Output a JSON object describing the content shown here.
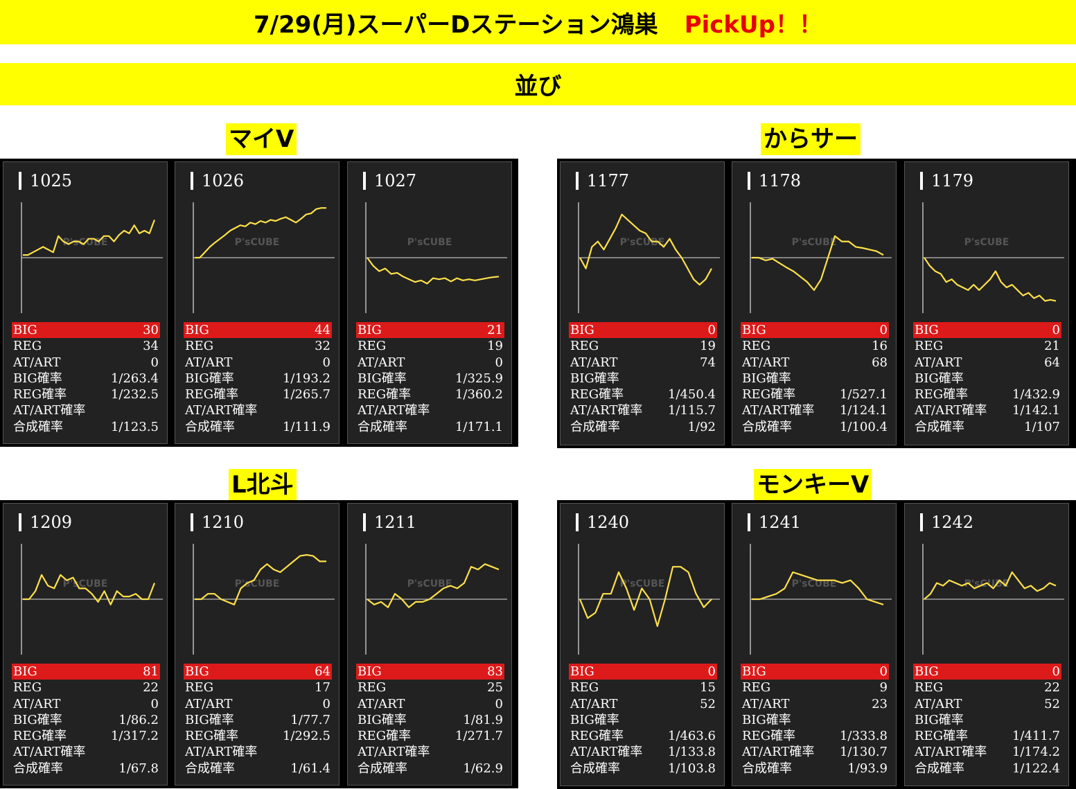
{
  "header": {
    "title": "7/29(月)スーパーDステーション鴻巣",
    "pickup": "PickUp！！"
  },
  "subheader": "並び",
  "labels": {
    "big": "BIG",
    "reg": "REG",
    "at": "AT/ART",
    "big_rate": "BIG確率",
    "reg_rate": "REG確率",
    "at_rate": "AT/ART確率",
    "total_rate": "合成確率"
  },
  "colors": {
    "banner": "#ffff00",
    "pickup": "#e60000",
    "big_row": "#dd1a1a",
    "line": "#ffe14a",
    "card_bg": "#222222"
  },
  "watermark": "P'sCUBE",
  "groups": [
    {
      "name": "マイV",
      "machines": [
        {
          "num": "1025",
          "big": "30",
          "reg": "34",
          "at": "0",
          "big_rate": "1/263.4",
          "reg_rate": "1/232.5",
          "at_rate": "",
          "total_rate": "1/123.5",
          "trend": [
            0.05,
            0.05,
            0.1,
            0.15,
            0.2,
            0.15,
            0.1,
            0.4,
            0.3,
            0.25,
            0.3,
            0.3,
            0.25,
            0.35,
            0.35,
            0.3,
            0.4,
            0.4,
            0.3,
            0.42,
            0.5,
            0.45,
            0.6,
            0.45,
            0.5,
            0.45,
            0.7
          ]
        },
        {
          "num": "1026",
          "big": "44",
          "reg": "32",
          "at": "0",
          "big_rate": "1/193.2",
          "reg_rate": "1/265.7",
          "at_rate": "",
          "total_rate": "1/111.9",
          "trend": [
            0.0,
            0.0,
            0.1,
            0.2,
            0.28,
            0.35,
            0.42,
            0.5,
            0.55,
            0.6,
            0.58,
            0.65,
            0.62,
            0.68,
            0.65,
            0.7,
            0.68,
            0.72,
            0.75,
            0.7,
            0.65,
            0.72,
            0.8,
            0.82,
            0.9,
            0.92,
            0.92
          ]
        },
        {
          "num": "1027",
          "big": "21",
          "reg": "19",
          "at": "0",
          "big_rate": "1/325.9",
          "reg_rate": "1/360.2",
          "at_rate": "",
          "total_rate": "1/171.1",
          "trend": [
            0.0,
            -0.15,
            -0.25,
            -0.2,
            -0.3,
            -0.28,
            -0.35,
            -0.4,
            -0.45,
            -0.42,
            -0.48,
            -0.38,
            -0.4,
            -0.38,
            -0.44,
            -0.38,
            -0.42,
            -0.4,
            -0.42,
            -0.4,
            -0.38,
            -0.36,
            -0.35
          ]
        }
      ]
    },
    {
      "name": "からサー",
      "machines": [
        {
          "num": "1177",
          "big": "0",
          "reg": "19",
          "at": "74",
          "big_rate": "",
          "reg_rate": "1/450.4",
          "at_rate": "1/115.7",
          "total_rate": "1/92",
          "trend": [
            0.0,
            -0.2,
            0.2,
            0.3,
            0.15,
            0.35,
            0.55,
            0.8,
            0.7,
            0.6,
            0.5,
            0.45,
            0.3,
            0.3,
            0.2,
            0.35,
            0.15,
            0.0,
            -0.2,
            -0.4,
            -0.5,
            -0.4,
            -0.2
          ]
        },
        {
          "num": "1178",
          "big": "0",
          "reg": "16",
          "at": "68",
          "big_rate": "",
          "reg_rate": "1/527.1",
          "at_rate": "1/124.1",
          "total_rate": "1/100.4",
          "trend": [
            0.0,
            0.0,
            -0.05,
            -0.02,
            -0.1,
            -0.18,
            -0.25,
            -0.35,
            -0.45,
            -0.6,
            -0.4,
            0.0,
            0.4,
            0.3,
            0.3,
            0.2,
            0.18,
            0.15,
            0.12,
            0.05
          ]
        },
        {
          "num": "1179",
          "big": "0",
          "reg": "21",
          "at": "64",
          "big_rate": "",
          "reg_rate": "1/432.9",
          "at_rate": "1/142.1",
          "total_rate": "1/107",
          "trend": [
            0.0,
            -0.15,
            -0.25,
            -0.3,
            -0.45,
            -0.4,
            -0.5,
            -0.55,
            -0.6,
            -0.5,
            -0.6,
            -0.5,
            -0.4,
            -0.25,
            -0.45,
            -0.55,
            -0.5,
            -0.6,
            -0.7,
            -0.65,
            -0.75,
            -0.7,
            -0.8,
            -0.78,
            -0.8
          ]
        }
      ]
    },
    {
      "name": "L北斗",
      "machines": [
        {
          "num": "1209",
          "big": "81",
          "reg": "22",
          "at": "0",
          "big_rate": "1/86.2",
          "reg_rate": "1/317.2",
          "at_rate": "",
          "total_rate": "1/67.8",
          "trend": [
            0.0,
            0.0,
            0.15,
            0.45,
            0.25,
            0.2,
            0.45,
            0.35,
            0.4,
            0.2,
            0.2,
            0.1,
            -0.05,
            0.15,
            -0.1,
            0.15,
            0.05,
            0.05,
            0.1,
            0.0,
            0.0,
            0.3
          ]
        },
        {
          "num": "1210",
          "big": "64",
          "reg": "17",
          "at": "0",
          "big_rate": "1/77.7",
          "reg_rate": "1/292.5",
          "at_rate": "",
          "total_rate": "1/61.4",
          "trend": [
            0.0,
            0.0,
            0.1,
            0.1,
            0.0,
            -0.05,
            -0.1,
            0.2,
            0.3,
            0.35,
            0.55,
            0.65,
            0.55,
            0.5,
            0.6,
            0.7,
            0.8,
            0.82,
            0.8,
            0.7,
            0.7
          ]
        },
        {
          "num": "1211",
          "big": "83",
          "reg": "25",
          "at": "0",
          "big_rate": "1/81.9",
          "reg_rate": "1/271.7",
          "at_rate": "",
          "total_rate": "1/62.9",
          "trend": [
            0.0,
            -0.1,
            -0.05,
            -0.15,
            0.1,
            0.0,
            -0.15,
            -0.05,
            -0.05,
            0.0,
            0.1,
            0.2,
            0.25,
            0.2,
            0.3,
            0.6,
            0.55,
            0.65,
            0.6,
            0.55
          ]
        }
      ]
    },
    {
      "name": "モンキーV",
      "machines": [
        {
          "num": "1240",
          "big": "0",
          "reg": "15",
          "at": "52",
          "big_rate": "",
          "reg_rate": "1/463.6",
          "at_rate": "1/133.8",
          "total_rate": "1/103.8",
          "trend": [
            0.0,
            -0.35,
            -0.25,
            0.1,
            0.1,
            0.5,
            0.2,
            -0.2,
            0.2,
            0.0,
            -0.5,
            0.0,
            0.6,
            0.6,
            0.5,
            0.1,
            -0.15,
            0.0
          ]
        },
        {
          "num": "1241",
          "big": "0",
          "reg": "9",
          "at": "23",
          "big_rate": "",
          "reg_rate": "1/333.8",
          "at_rate": "1/130.7",
          "total_rate": "1/93.9",
          "trend": [
            0.0,
            0.0,
            0.05,
            0.1,
            0.2,
            0.5,
            0.45,
            0.4,
            0.35,
            0.35,
            0.35,
            0.3,
            0.35,
            0.2,
            0.0,
            -0.05,
            -0.1
          ]
        },
        {
          "num": "1242",
          "big": "0",
          "reg": "22",
          "at": "52",
          "big_rate": "",
          "reg_rate": "1/411.7",
          "at_rate": "1/174.2",
          "total_rate": "1/122.4",
          "trend": [
            0.0,
            0.1,
            0.3,
            0.25,
            0.35,
            0.3,
            0.25,
            0.3,
            0.2,
            0.25,
            0.3,
            0.2,
            0.35,
            0.25,
            0.5,
            0.35,
            0.2,
            0.25,
            0.15,
            0.2,
            0.3,
            0.25
          ]
        }
      ]
    }
  ]
}
